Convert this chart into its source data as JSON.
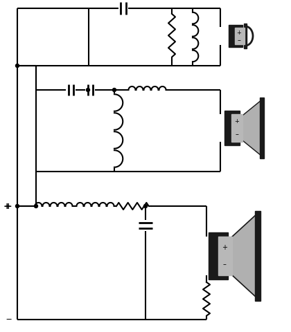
{
  "bg_color": "#ffffff",
  "line_color": "#000000",
  "speaker_body_color": "#b8b8b8",
  "speaker_dark_color": "#1a1a1a",
  "speaker_cone_color": "#aaaaaa",
  "line_width": 1.5,
  "comp_lw": 1.5,
  "fig_w": 4.2,
  "fig_h": 4.8,
  "dpi": 100
}
